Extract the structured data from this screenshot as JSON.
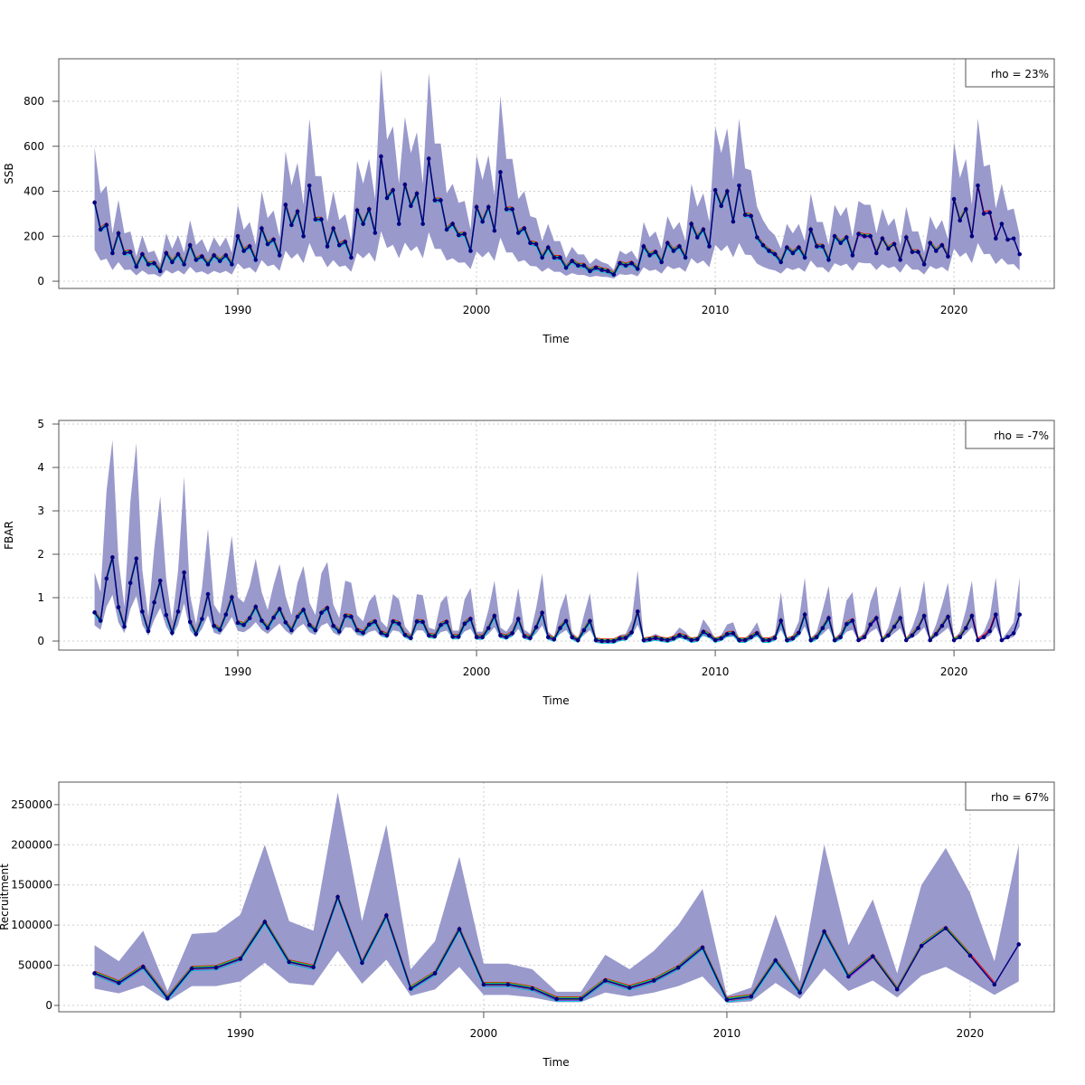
{
  "chart_data": [
    {
      "type": "area",
      "ylabel": "SSB",
      "xlabel": "Time",
      "legend": "rho = 23%",
      "legend_placement": "top-right",
      "x_start": 1984.0,
      "x_step": 0.25,
      "xlim": [
        1982.5,
        2024.2
      ],
      "ylim": [
        -32,
        989
      ],
      "xticks": [
        1990,
        2000,
        2010,
        2020
      ],
      "yticks": [
        0,
        200,
        400,
        600,
        800
      ],
      "grid": true,
      "ci_upper_factor": 1.7,
      "ci_lower_factor": 0.4,
      "values": [
        350,
        230,
        250,
        125,
        213,
        125,
        130,
        65,
        120,
        75,
        80,
        45,
        125,
        85,
        120,
        75,
        160,
        95,
        110,
        75,
        115,
        90,
        115,
        75,
        200,
        135,
        155,
        95,
        235,
        165,
        185,
        115,
        340,
        250,
        310,
        200,
        425,
        275,
        275,
        155,
        235,
        160,
        175,
        105,
        315,
        255,
        320,
        215,
        555,
        370,
        405,
        255,
        430,
        335,
        390,
        255,
        545,
        360,
        360,
        230,
        255,
        205,
        210,
        135,
        330,
        265,
        330,
        225,
        485,
        320,
        320,
        215,
        235,
        170,
        165,
        105,
        150,
        105,
        105,
        60,
        90,
        70,
        70,
        45,
        60,
        50,
        45,
        30,
        80,
        70,
        80,
        55,
        155,
        115,
        130,
        85,
        170,
        135,
        155,
        105,
        255,
        195,
        230,
        155,
        405,
        335,
        400,
        265,
        425,
        295,
        290,
        195,
        160,
        135,
        120,
        85,
        150,
        125,
        150,
        105,
        230,
        155,
        155,
        95,
        200,
        170,
        195,
        115,
        210,
        200,
        200,
        125,
        190,
        145,
        165,
        95,
        195,
        130,
        130,
        75,
        170,
        135,
        160,
        110,
        365,
        270,
        320,
        200,
        425,
        300,
        305,
        190,
        255,
        185,
        190,
        120
      ]
    },
    {
      "type": "area",
      "ylabel": "FBAR",
      "xlabel": "Time",
      "legend": "rho = -7%",
      "legend_placement": "top-right",
      "x_start": 1984.0,
      "x_step": 0.25,
      "xlim": [
        1982.5,
        2024.2
      ],
      "ylim": [
        -0.208,
        5.083
      ],
      "xticks": [
        1990,
        2000,
        2010,
        2020
      ],
      "yticks": [
        0,
        1,
        2,
        3,
        4,
        5
      ],
      "grid": true,
      "ci_upper_factor": 2.4,
      "ci_lower_factor": 0.55,
      "values": [
        0.66,
        0.47,
        1.44,
        1.93,
        0.78,
        0.33,
        1.34,
        1.9,
        0.68,
        0.23,
        0.89,
        1.39,
        0.6,
        0.19,
        0.68,
        1.58,
        0.44,
        0.16,
        0.51,
        1.08,
        0.35,
        0.26,
        0.61,
        1.01,
        0.42,
        0.37,
        0.53,
        0.79,
        0.47,
        0.3,
        0.54,
        0.74,
        0.43,
        0.25,
        0.56,
        0.72,
        0.37,
        0.25,
        0.65,
        0.76,
        0.35,
        0.22,
        0.58,
        0.56,
        0.25,
        0.19,
        0.38,
        0.45,
        0.19,
        0.13,
        0.45,
        0.4,
        0.14,
        0.07,
        0.45,
        0.44,
        0.13,
        0.11,
        0.37,
        0.44,
        0.1,
        0.1,
        0.4,
        0.51,
        0.09,
        0.09,
        0.3,
        0.58,
        0.13,
        0.09,
        0.18,
        0.51,
        0.11,
        0.07,
        0.32,
        0.65,
        0.09,
        0.04,
        0.3,
        0.46,
        0.09,
        0.02,
        0.25,
        0.46,
        0.02,
        0,
        0,
        0,
        0.06,
        0.07,
        0.2,
        0.68,
        0.02,
        0.04,
        0.07,
        0.04,
        0.02,
        0.06,
        0.13,
        0.09,
        0.02,
        0.04,
        0.21,
        0.13,
        0.02,
        0.06,
        0.16,
        0.18,
        0.02,
        0.02,
        0.09,
        0.18,
        0.02,
        0.02,
        0.07,
        0.47,
        0.02,
        0.06,
        0.19,
        0.61,
        0.02,
        0.09,
        0.3,
        0.53,
        0.02,
        0.09,
        0.39,
        0.47,
        0.02,
        0.09,
        0.38,
        0.53,
        0.02,
        0.13,
        0.33,
        0.53,
        0.02,
        0.13,
        0.3,
        0.58,
        0.02,
        0.16,
        0.35,
        0.56,
        0.02,
        0.09,
        0.3,
        0.58,
        0.02,
        0.09,
        0.23,
        0.61,
        0.02,
        0.09,
        0.18,
        0.61
      ]
    },
    {
      "type": "area",
      "ylabel": "Recruitment",
      "xlabel": "Time",
      "legend": "rho = 67%",
      "legend_placement": "top-right",
      "x_start": 1984,
      "x_step": 1,
      "xlim": [
        1982.53,
        2023.46
      ],
      "ylim": [
        -7900,
        278000
      ],
      "xticks": [
        1990,
        2000,
        2010,
        2020
      ],
      "yticks": [
        0,
        50000,
        100000,
        150000,
        200000,
        250000
      ],
      "grid": true,
      "values": [
        40000,
        28000,
        48000,
        9000,
        46000,
        47000,
        58000,
        104000,
        54000,
        47500,
        135000,
        53000,
        112000,
        21000,
        40000,
        95000,
        26000,
        26000,
        21000,
        8000,
        8000,
        31000,
        22000,
        31000,
        47000,
        72000,
        7000,
        11000,
        56000,
        16000,
        92000,
        36000,
        61000,
        20000,
        74000,
        96000,
        62000,
        26000,
        76000
      ],
      "upper": [
        75000,
        55000,
        93000,
        18000,
        89000,
        91000,
        113000,
        200000,
        105000,
        93000,
        265000,
        105000,
        225000,
        45000,
        80000,
        185000,
        52000,
        52000,
        45000,
        17000,
        17000,
        63000,
        45000,
        68000,
        100000,
        145000,
        12000,
        22000,
        113000,
        30000,
        200000,
        75000,
        132000,
        40000,
        150000,
        196000,
        140000,
        55000,
        200000
      ],
      "lower": [
        21000,
        15000,
        25000,
        5000,
        24000,
        24000,
        30000,
        53000,
        28000,
        25000,
        68000,
        27000,
        57000,
        12000,
        20000,
        48000,
        13000,
        13000,
        10000,
        4000,
        4000,
        16000,
        11000,
        16000,
        24000,
        36000,
        3000,
        5000,
        28000,
        8000,
        46000,
        18000,
        31000,
        10000,
        37000,
        48000,
        31000,
        13000,
        30000
      ]
    }
  ],
  "colors": {
    "band": "#9999cc",
    "main": "#000080",
    "peels": [
      "#ff0000",
      "#00ee00",
      "#1e90ff",
      "#ff00ff",
      "#cccc00",
      "#a020f0",
      "#00cccc"
    ]
  }
}
